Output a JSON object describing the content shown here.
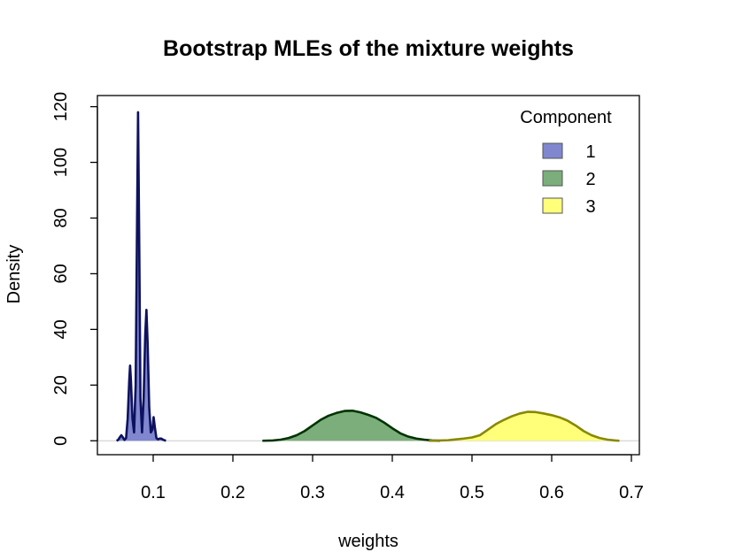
{
  "chart_data": {
    "type": "area",
    "title": "Bootstrap MLEs of the mixture weights",
    "xlabel": "weights",
    "ylabel": "Density",
    "xlim": [
      0.03,
      0.71
    ],
    "ylim": [
      -5,
      124
    ],
    "x_ticks": [
      0.1,
      0.2,
      0.3,
      0.4,
      0.5,
      0.6,
      0.7
    ],
    "x_tick_labels": [
      "0.1",
      "0.2",
      "0.3",
      "0.4",
      "0.5",
      "0.6",
      "0.7"
    ],
    "y_ticks": [
      0,
      20,
      40,
      60,
      80,
      100,
      120
    ],
    "y_tick_labels": [
      "0",
      "20",
      "40",
      "60",
      "80",
      "100",
      "120"
    ],
    "grid": false,
    "baseline": 0,
    "legend": {
      "title": "Component",
      "position": "top-right",
      "entries": [
        "1",
        "2",
        "3"
      ]
    },
    "series": [
      {
        "name": "1",
        "fill": "#8087CE",
        "stroke": "#0E125E",
        "points": [
          [
            0.054,
            0
          ],
          [
            0.056,
            0.3
          ],
          [
            0.058,
            1.2
          ],
          [
            0.06,
            2
          ],
          [
            0.062,
            1.2
          ],
          [
            0.064,
            0.3
          ],
          [
            0.066,
            1
          ],
          [
            0.068,
            8
          ],
          [
            0.07,
            22
          ],
          [
            0.071,
            27
          ],
          [
            0.072,
            22
          ],
          [
            0.074,
            8
          ],
          [
            0.076,
            3
          ],
          [
            0.078,
            20
          ],
          [
            0.0795,
            70
          ],
          [
            0.081,
            118
          ],
          [
            0.0825,
            70
          ],
          [
            0.084,
            15
          ],
          [
            0.086,
            3
          ],
          [
            0.088,
            15
          ],
          [
            0.09,
            38
          ],
          [
            0.0915,
            47
          ],
          [
            0.093,
            35
          ],
          [
            0.095,
            12
          ],
          [
            0.097,
            3
          ],
          [
            0.099,
            4
          ],
          [
            0.1005,
            8.5
          ],
          [
            0.102,
            5
          ],
          [
            0.104,
            1
          ],
          [
            0.106,
            0.5
          ],
          [
            0.108,
            0.8
          ],
          [
            0.11,
            0.8
          ],
          [
            0.113,
            0.3
          ],
          [
            0.116,
            0
          ]
        ]
      },
      {
        "name": "2",
        "fill": "#7BAE7B",
        "stroke": "#003300",
        "points": [
          [
            0.237,
            0
          ],
          [
            0.25,
            0.1
          ],
          [
            0.26,
            0.4
          ],
          [
            0.27,
            1
          ],
          [
            0.28,
            2
          ],
          [
            0.29,
            3.5
          ],
          [
            0.3,
            5.5
          ],
          [
            0.31,
            7.5
          ],
          [
            0.32,
            9
          ],
          [
            0.33,
            10
          ],
          [
            0.34,
            10.7
          ],
          [
            0.35,
            10.8
          ],
          [
            0.36,
            10.2
          ],
          [
            0.37,
            9.3
          ],
          [
            0.38,
            8.2
          ],
          [
            0.39,
            6.5
          ],
          [
            0.4,
            4.5
          ],
          [
            0.41,
            2.7
          ],
          [
            0.42,
            1.5
          ],
          [
            0.43,
            0.8
          ],
          [
            0.44,
            0.4
          ],
          [
            0.45,
            0.1
          ],
          [
            0.46,
            0
          ]
        ]
      },
      {
        "name": "3",
        "fill": "#FFFF7A",
        "stroke": "#888800",
        "points": [
          [
            0.446,
            0
          ],
          [
            0.46,
            0.1
          ],
          [
            0.47,
            0.2
          ],
          [
            0.48,
            0.5
          ],
          [
            0.49,
            0.8
          ],
          [
            0.5,
            1.2
          ],
          [
            0.51,
            2
          ],
          [
            0.52,
            4
          ],
          [
            0.53,
            6
          ],
          [
            0.54,
            7.5
          ],
          [
            0.55,
            8.8
          ],
          [
            0.56,
            9.8
          ],
          [
            0.57,
            10.4
          ],
          [
            0.58,
            10.3
          ],
          [
            0.59,
            9.8
          ],
          [
            0.6,
            9.2
          ],
          [
            0.61,
            8.4
          ],
          [
            0.62,
            7.2
          ],
          [
            0.63,
            5.5
          ],
          [
            0.64,
            3.5
          ],
          [
            0.65,
            2
          ],
          [
            0.66,
            1
          ],
          [
            0.67,
            0.4
          ],
          [
            0.68,
            0.1
          ],
          [
            0.685,
            0
          ]
        ]
      }
    ]
  }
}
